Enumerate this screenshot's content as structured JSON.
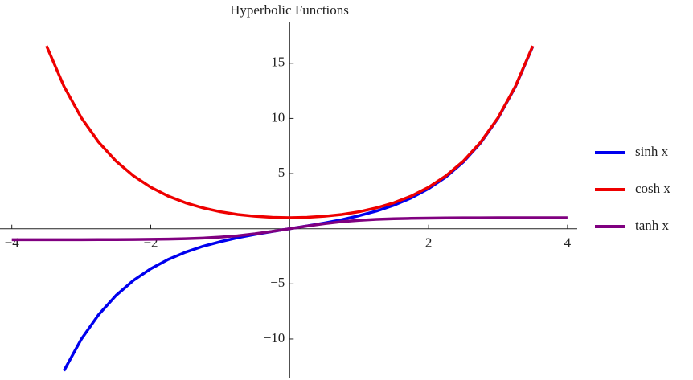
{
  "chart_data": {
    "type": "line",
    "title": "Hyperbolic Functions",
    "x": [
      -4,
      -3.75,
      -3.5,
      -3.25,
      -3,
      -2.75,
      -2.5,
      -2.25,
      -2,
      -1.75,
      -1.5,
      -1.25,
      -1,
      -0.75,
      -0.5,
      -0.25,
      0,
      0.25,
      0.5,
      0.75,
      1,
      1.25,
      1.5,
      1.75,
      2,
      2.25,
      2.5,
      2.75,
      3,
      3.25,
      3.5,
      3.75,
      4
    ],
    "series": [
      {
        "name": "sinh x",
        "color": "#0000ee",
        "values": [
          null,
          null,
          null,
          -12.88,
          -10.02,
          -7.79,
          -6.05,
          -4.69,
          -3.63,
          -2.79,
          -2.13,
          -1.6,
          -1.18,
          -0.82,
          -0.52,
          -0.25,
          0,
          0.25,
          0.52,
          0.82,
          1.18,
          1.6,
          2.13,
          2.79,
          3.63,
          4.69,
          6.05,
          7.79,
          10.02,
          12.88,
          16.54,
          null,
          null
        ]
      },
      {
        "name": "cosh x",
        "color": "#ee0000",
        "values": [
          null,
          null,
          16.57,
          12.92,
          10.07,
          7.85,
          6.13,
          4.8,
          3.76,
          2.96,
          2.35,
          1.89,
          1.54,
          1.29,
          1.13,
          1.03,
          1,
          1.03,
          1.13,
          1.29,
          1.54,
          1.89,
          2.35,
          2.96,
          3.76,
          4.8,
          6.13,
          7.85,
          10.07,
          12.92,
          16.57,
          null,
          null
        ]
      },
      {
        "name": "tanh x",
        "color": "#800080",
        "values": [
          -1,
          -1,
          -1,
          -1,
          -1,
          -0.99,
          -0.99,
          -0.98,
          -0.96,
          -0.94,
          -0.91,
          -0.85,
          -0.76,
          -0.64,
          -0.46,
          -0.24,
          0,
          0.24,
          0.46,
          0.64,
          0.76,
          0.85,
          0.91,
          0.94,
          0.96,
          0.98,
          0.99,
          0.99,
          1,
          1,
          1,
          1,
          1
        ]
      }
    ],
    "xlim": [
      -4.17,
      4.14
    ],
    "ylim": [
      -13.5,
      18.7
    ],
    "xticks": [
      {
        "value": -4,
        "label": "−4"
      },
      {
        "value": -2,
        "label": "−2"
      },
      2,
      4
    ],
    "yticks": [
      {
        "value": -10,
        "label": "−10"
      },
      {
        "value": -5,
        "label": "−5"
      },
      5,
      10,
      15
    ],
    "legend": "right"
  }
}
